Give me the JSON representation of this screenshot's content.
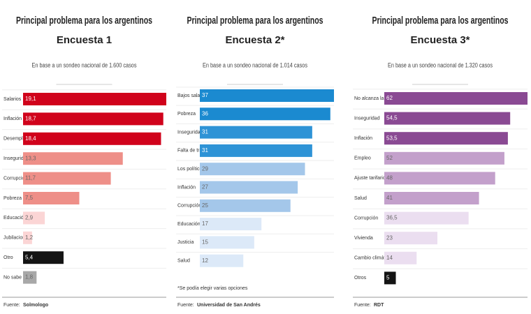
{
  "chart_data": [
    {
      "type": "bar",
      "orientation": "horizontal",
      "title": "Principal problema para los argentinos",
      "survey": "Encuesta 1",
      "subtitle": "En base a un sondeo nacional de 1.600 casos",
      "categories": [
        "Salarios",
        "Inflación",
        "Desempleo",
        "Inseguridad",
        "Corrupción",
        "Pobreza",
        "Educación",
        "Jubilaciones",
        "Otro",
        "No sabe"
      ],
      "values": [
        19.1,
        18.7,
        18.4,
        13.3,
        11.7,
        7.5,
        2.9,
        1.2,
        5.4,
        1.8
      ],
      "value_labels": [
        "19,1",
        "18,7",
        "18,4",
        "13,3",
        "11,7",
        "7,5",
        "2,9",
        "1,2",
        "5,4",
        "1,8"
      ],
      "colors": [
        "#d0021b",
        "#d0021b",
        "#d0021b",
        "#ee8f88",
        "#ee8f88",
        "#ee8f88",
        "#fbd5d5",
        "#fbd5d5",
        "#141414",
        "#a8a8a8"
      ],
      "source_label": "Fuente:",
      "source": "Solmologo"
    },
    {
      "type": "bar",
      "orientation": "horizontal",
      "title": "Principal problema para los argentinos",
      "survey": "Encuesta 2*",
      "subtitle": "En base a un sondeo nacional de 1.014 casos",
      "categories": [
        "Bajos salarios",
        "Pobreza",
        "Inseguridad",
        "Falta de trabajo",
        "Los políticos",
        "Inflación",
        "Corrupción",
        "Educación",
        "Justicia",
        "Salud"
      ],
      "values": [
        37,
        36,
        31,
        31,
        29,
        27,
        25,
        17,
        15,
        12
      ],
      "colors": [
        "#1b8ad0",
        "#1b8ad0",
        "#2e93d6",
        "#2e93d6",
        "#a4c7ea",
        "#a4c7ea",
        "#a4c7ea",
        "#dce9f8",
        "#dce9f8",
        "#dce9f8"
      ],
      "footnote": "*Se podía elegir varias opciones",
      "source_label": "Fuente:",
      "source": "Universidad de San Andrés"
    },
    {
      "type": "bar",
      "orientation": "horizontal",
      "title": "Principal problema para los argentinos",
      "survey": "Encuesta 3*",
      "subtitle": "En base a un sondeo nacional de 1.320 casos",
      "categories": [
        "No alcanza la plata",
        "Inseguridad",
        "Inflación",
        "Empleo",
        "Ajuste tarifario",
        "Salud",
        "Corrupción",
        "Vivienda",
        "Cambio climático",
        "Otros"
      ],
      "values": [
        62,
        54.5,
        53.5,
        52,
        48,
        41,
        36.5,
        23,
        14,
        5
      ],
      "value_labels": [
        "62",
        "54,5",
        "53,5",
        "52",
        "48",
        "41",
        "36,5",
        "23",
        "14",
        "5"
      ],
      "colors": [
        "#8a4a93",
        "#8a4a93",
        "#8a4a93",
        "#c3a0cb",
        "#c3a0cb",
        "#c3a0cb",
        "#ebdef0",
        "#ebdef0",
        "#ebdef0",
        "#141414"
      ],
      "source_label": "Fuente:",
      "source": "RDT"
    }
  ]
}
